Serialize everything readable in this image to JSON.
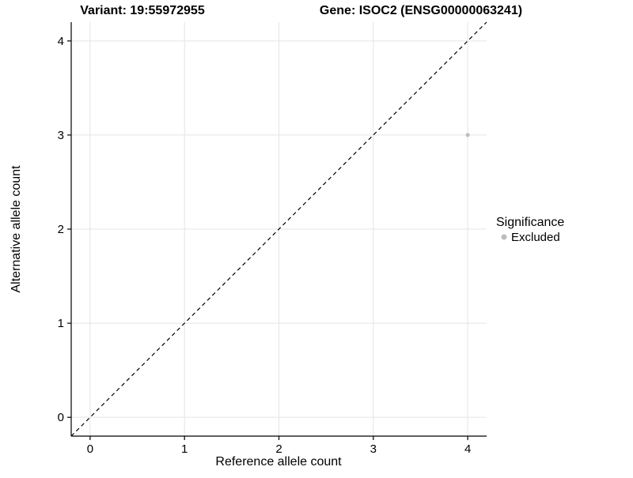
{
  "chart_data": {
    "type": "scatter",
    "title_left": "Variant: 19:55972955",
    "title_right": "Gene: ISOC2 (ENSG00000063241)",
    "xlabel": "Reference allele count",
    "ylabel": "Alternative allele count",
    "xlim": [
      -0.2,
      4.2
    ],
    "ylim": [
      -0.2,
      4.2
    ],
    "x_ticks": [
      0,
      1,
      2,
      3,
      4
    ],
    "y_ticks": [
      0,
      1,
      2,
      3,
      4
    ],
    "grid": "major",
    "points": [
      {
        "x": 4,
        "y": 3,
        "series": "Excluded"
      }
    ],
    "reference_line": {
      "style": "dashed",
      "from": [
        -0.2,
        -0.2
      ],
      "to": [
        4.2,
        4.2
      ]
    },
    "legend": {
      "title": "Significance",
      "position": "right",
      "entries": [
        {
          "label": "Excluded",
          "color": "#bdbdbd"
        }
      ]
    },
    "colors": {
      "point": "#bdbdbd",
      "grid": "#e4e4e4",
      "axis": "#000000",
      "reference_line": "#000000"
    }
  }
}
